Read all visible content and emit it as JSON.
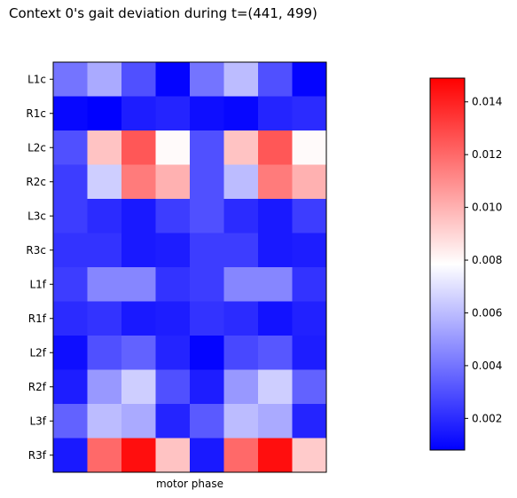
{
  "chart_data": {
    "type": "heatmap",
    "title": "Context 0's gait deviation during t=(441, 499)",
    "xlabel": "motor phase",
    "ylabel": "",
    "rows": [
      "L1c",
      "R1c",
      "L2c",
      "R2c",
      "L3c",
      "R3c",
      "L1f",
      "R1f",
      "L2f",
      "R2f",
      "L3f",
      "R3f"
    ],
    "n_columns": 8,
    "values": [
      [
        0.004,
        0.0055,
        0.003,
        0.0009,
        0.004,
        0.006,
        0.003,
        0.0009
      ],
      [
        0.001,
        0.0008,
        0.0016,
        0.0018,
        0.0012,
        0.001,
        0.0018,
        0.002
      ],
      [
        0.003,
        0.0095,
        0.0125,
        0.008,
        0.003,
        0.0095,
        0.0125,
        0.008
      ],
      [
        0.0025,
        0.0065,
        0.0115,
        0.01,
        0.003,
        0.006,
        0.0115,
        0.01
      ],
      [
        0.0025,
        0.002,
        0.0015,
        0.0025,
        0.003,
        0.002,
        0.0015,
        0.0025
      ],
      [
        0.0022,
        0.0022,
        0.0015,
        0.0016,
        0.0025,
        0.0025,
        0.0015,
        0.0016
      ],
      [
        0.0025,
        0.0045,
        0.0045,
        0.0022,
        0.0025,
        0.0045,
        0.0045,
        0.0022
      ],
      [
        0.002,
        0.0022,
        0.0015,
        0.0016,
        0.0022,
        0.002,
        0.0013,
        0.0017
      ],
      [
        0.0012,
        0.003,
        0.0035,
        0.0018,
        0.0009,
        0.0028,
        0.0032,
        0.0016
      ],
      [
        0.0016,
        0.005,
        0.0065,
        0.003,
        0.0016,
        0.005,
        0.0065,
        0.0035
      ],
      [
        0.0035,
        0.006,
        0.0055,
        0.0018,
        0.0033,
        0.006,
        0.0055,
        0.0018
      ],
      [
        0.0015,
        0.012,
        0.0145,
        0.0095,
        0.0015,
        0.012,
        0.0145,
        0.0093
      ]
    ],
    "colormap": "bwr",
    "colormap_stops": [
      "#0000ff",
      "#ffffff",
      "#ff0000"
    ],
    "vmin": 0.0008,
    "vmax": 0.0149,
    "colorbar_ticks": [
      "0.002",
      "0.004",
      "0.006",
      "0.008",
      "0.010",
      "0.012",
      "0.014"
    ],
    "colorbar_tick_values": [
      0.002,
      0.004,
      0.006,
      0.008,
      0.01,
      0.012,
      0.014
    ],
    "grid": false
  }
}
